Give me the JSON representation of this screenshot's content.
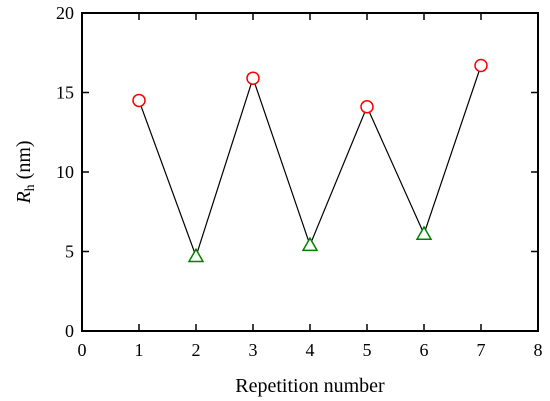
{
  "chart_data": {
    "type": "scatter",
    "xlabel": "Repetition number",
    "ylabel": {
      "main": "R",
      "sub": "h",
      "rest": " (nm)"
    },
    "xlim": [
      0,
      8
    ],
    "ylim": [
      0,
      20
    ],
    "xticks": [
      "0",
      "1",
      "2",
      "3",
      "4",
      "5",
      "6",
      "7",
      "8"
    ],
    "yticks": [
      "0",
      "5",
      "10",
      "15",
      "20"
    ],
    "grid": false,
    "connect_line": {
      "points": [
        [
          1,
          14.5
        ],
        [
          2,
          4.7
        ],
        [
          3,
          15.9
        ],
        [
          4,
          5.4
        ],
        [
          5,
          14.1
        ],
        [
          6,
          6.1
        ],
        [
          7,
          16.7
        ]
      ],
      "color": "#000000"
    },
    "series": [
      {
        "marker": "circle",
        "color": "#ff0000",
        "x": [
          1,
          3,
          5,
          7
        ],
        "y": [
          14.5,
          15.9,
          14.1,
          16.7
        ]
      },
      {
        "marker": "triangle",
        "color": "#008000",
        "x": [
          2,
          4,
          6
        ],
        "y": [
          4.7,
          5.4,
          6.1
        ]
      }
    ]
  }
}
